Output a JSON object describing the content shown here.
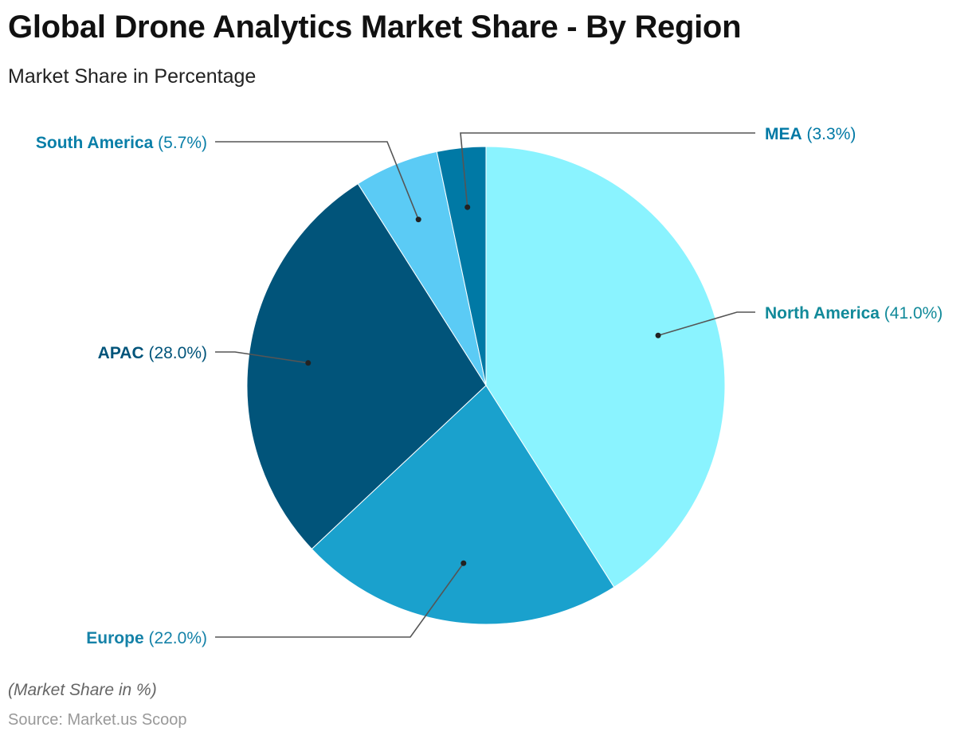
{
  "title": "Global Drone Analytics Market Share - By Region",
  "subtitle": "Market Share in Percentage",
  "footnote": "(Market Share in %)",
  "source": "Source: Market.us Scoop",
  "chart_data": {
    "type": "pie",
    "title": "Global Drone Analytics Market Share - By Region",
    "subtitle": "Market Share in Percentage",
    "start_angle": "top, clockwise",
    "slices": [
      {
        "name": "North America",
        "value": 41.0,
        "label": "(41.0%)",
        "color": "#8af3ff",
        "label_color": "#128a9a"
      },
      {
        "name": "Europe",
        "value": 22.0,
        "label": "(22.0%)",
        "color": "#1aa1cd",
        "label_color": "#1582a8"
      },
      {
        "name": "APAC",
        "value": 28.0,
        "label": "(28.0%)",
        "color": "#01547a",
        "label_color": "#01547a"
      },
      {
        "name": "South America",
        "value": 5.7,
        "label": "(5.7%)",
        "color": "#5bcbf5",
        "label_color": "#0a7fa8"
      },
      {
        "name": "MEA",
        "value": 3.3,
        "label": "(3.3%)",
        "color": "#0079a5",
        "label_color": "#0079a5"
      }
    ]
  }
}
